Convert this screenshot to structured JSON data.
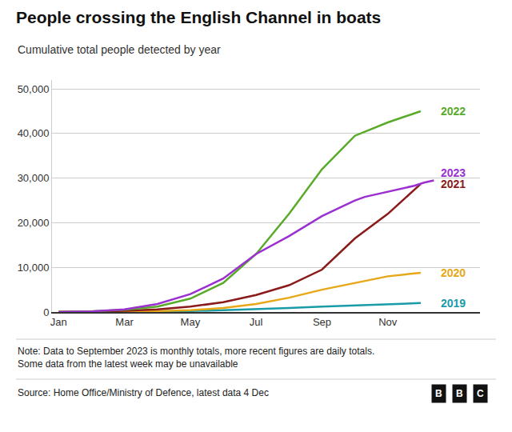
{
  "chart_data": {
    "type": "line",
    "title": "People crossing the English Channel in boats",
    "subtitle": "Cumulative total people detected by year",
    "note": "Note: Data to September 2023 is monthly totals, more recent figures are daily totals.\nSome data from the latest week may be unavailable",
    "source": "Source: Home Office/Ministry of Defence, latest data 4 Dec",
    "logo": "BBC",
    "xlim": [
      -0.2,
      12.8
    ],
    "xticks": [
      {
        "value": 0,
        "label": "Jan"
      },
      {
        "value": 2,
        "label": "Mar"
      },
      {
        "value": 4,
        "label": "May"
      },
      {
        "value": 6,
        "label": "Jul"
      },
      {
        "value": 8,
        "label": "Sep"
      },
      {
        "value": 10,
        "label": "Nov"
      }
    ],
    "ylim": [
      0,
      52000
    ],
    "yticks": [
      0,
      {
        "value": 10000,
        "label": "10,000"
      },
      {
        "value": 20000,
        "label": "20,000"
      },
      {
        "value": 30000,
        "label": "30,000"
      },
      {
        "value": 40000,
        "label": "40,000"
      },
      {
        "value": 50000,
        "label": "50,000"
      }
    ],
    "grid": "y",
    "series": [
      {
        "name": "2019",
        "color": "#1a9ba8",
        "x": [
          0,
          1,
          2,
          3,
          4,
          5,
          6,
          7,
          8,
          9,
          10,
          11
        ],
        "values": [
          0,
          30,
          60,
          120,
          220,
          400,
          600,
          900,
          1200,
          1500,
          1800,
          2000
        ]
      },
      {
        "name": "2020",
        "color": "#e6a817",
        "x": [
          0,
          1,
          2,
          3,
          4,
          5,
          6,
          7,
          8,
          9,
          10,
          11
        ],
        "values": [
          0,
          40,
          100,
          200,
          400,
          900,
          1800,
          3200,
          5000,
          6500,
          8000,
          8800
        ]
      },
      {
        "name": "2021",
        "color": "#8b1a1a",
        "x": [
          0,
          1,
          2,
          3,
          4,
          5,
          6,
          7,
          8,
          9,
          10,
          11
        ],
        "values": [
          0,
          80,
          250,
          600,
          1200,
          2200,
          3800,
          6000,
          9500,
          16500,
          22000,
          28700
        ]
      },
      {
        "name": "2022",
        "color": "#5aaa2a",
        "x": [
          0,
          1,
          2,
          3,
          4,
          5,
          6,
          7,
          8,
          9,
          10,
          11
        ],
        "values": [
          0,
          150,
          500,
          1200,
          3000,
          6500,
          13000,
          22000,
          32000,
          39500,
          42500,
          45000
        ]
      },
      {
        "name": "2023",
        "color": "#9b30d0",
        "x": [
          0,
          1,
          2,
          3,
          4,
          5,
          6,
          7,
          8,
          9,
          9.3,
          9.6,
          9.9,
          10.2,
          10.5,
          10.8,
          11.1,
          11.4
        ],
        "values": [
          0,
          150,
          600,
          1800,
          4000,
          7500,
          13000,
          17000,
          21500,
          25000,
          25800,
          26300,
          26800,
          27300,
          27800,
          28300,
          29000,
          29500
        ]
      }
    ],
    "annotations": [
      {
        "text": "2019",
        "x": 11.55,
        "y": 2000
      },
      {
        "text": "2020",
        "x": 11.55,
        "y": 8800
      },
      {
        "text": "2021",
        "x": 11.55,
        "y": 28700
      },
      {
        "text": "2022",
        "x": 11.55,
        "y": 45000
      },
      {
        "text": "2023",
        "x": 11.55,
        "y": 31200
      }
    ]
  }
}
